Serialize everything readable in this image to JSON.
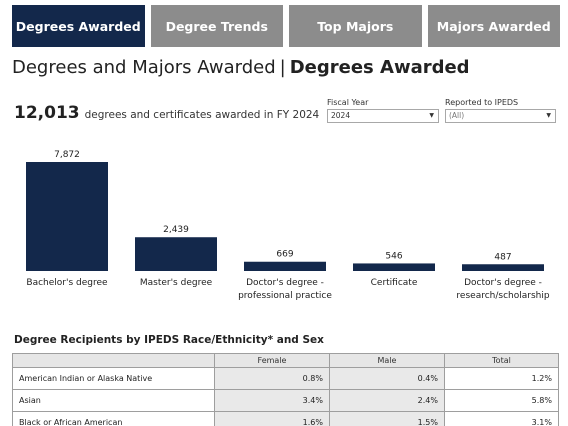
{
  "tabs": [
    {
      "label": "Degrees Awarded",
      "active": true
    },
    {
      "label": "Degree Trends",
      "active": false
    },
    {
      "label": "Top Majors",
      "active": false
    },
    {
      "label": "Majors Awarded",
      "active": false
    }
  ],
  "page_title": {
    "main": "Degrees and Majors Awarded",
    "separator": "|",
    "sub": "Degrees Awarded"
  },
  "headline": {
    "total": "12,013",
    "text": "degrees and certificates awarded in FY 2024"
  },
  "filters": {
    "fiscal_year": {
      "label": "Fiscal Year",
      "value": "2024"
    },
    "reported_ipeds": {
      "label": "Reported to IPEDS",
      "value": "(All)"
    }
  },
  "colors": {
    "navy": "#13284b",
    "tab_inactive": "#8c8c8c"
  },
  "chart_data": {
    "type": "bar",
    "categories": [
      [
        "Bachelor's degree"
      ],
      [
        "Master's degree"
      ],
      [
        "Doctor's degree -",
        "professional practice"
      ],
      [
        "Certificate"
      ],
      [
        "Doctor's degree -",
        "research/scholarship"
      ]
    ],
    "values": [
      7872,
      2439,
      669,
      546,
      487
    ],
    "labels": [
      "7,872",
      "2,439",
      "669",
      "546",
      "487"
    ],
    "color": "#13284b"
  },
  "table": {
    "title": "Degree Recipients by IPEDS Race/Ethnicity* and Sex",
    "columns": [
      "",
      "Female",
      "Male",
      "Total"
    ],
    "rows": [
      [
        "American Indian or Alaska Native",
        "0.8%",
        "0.4%",
        "1.2%"
      ],
      [
        "Asian",
        "3.4%",
        "2.4%",
        "5.8%"
      ],
      [
        "Black or African American",
        "1.6%",
        "1.5%",
        "3.1%"
      ]
    ]
  }
}
